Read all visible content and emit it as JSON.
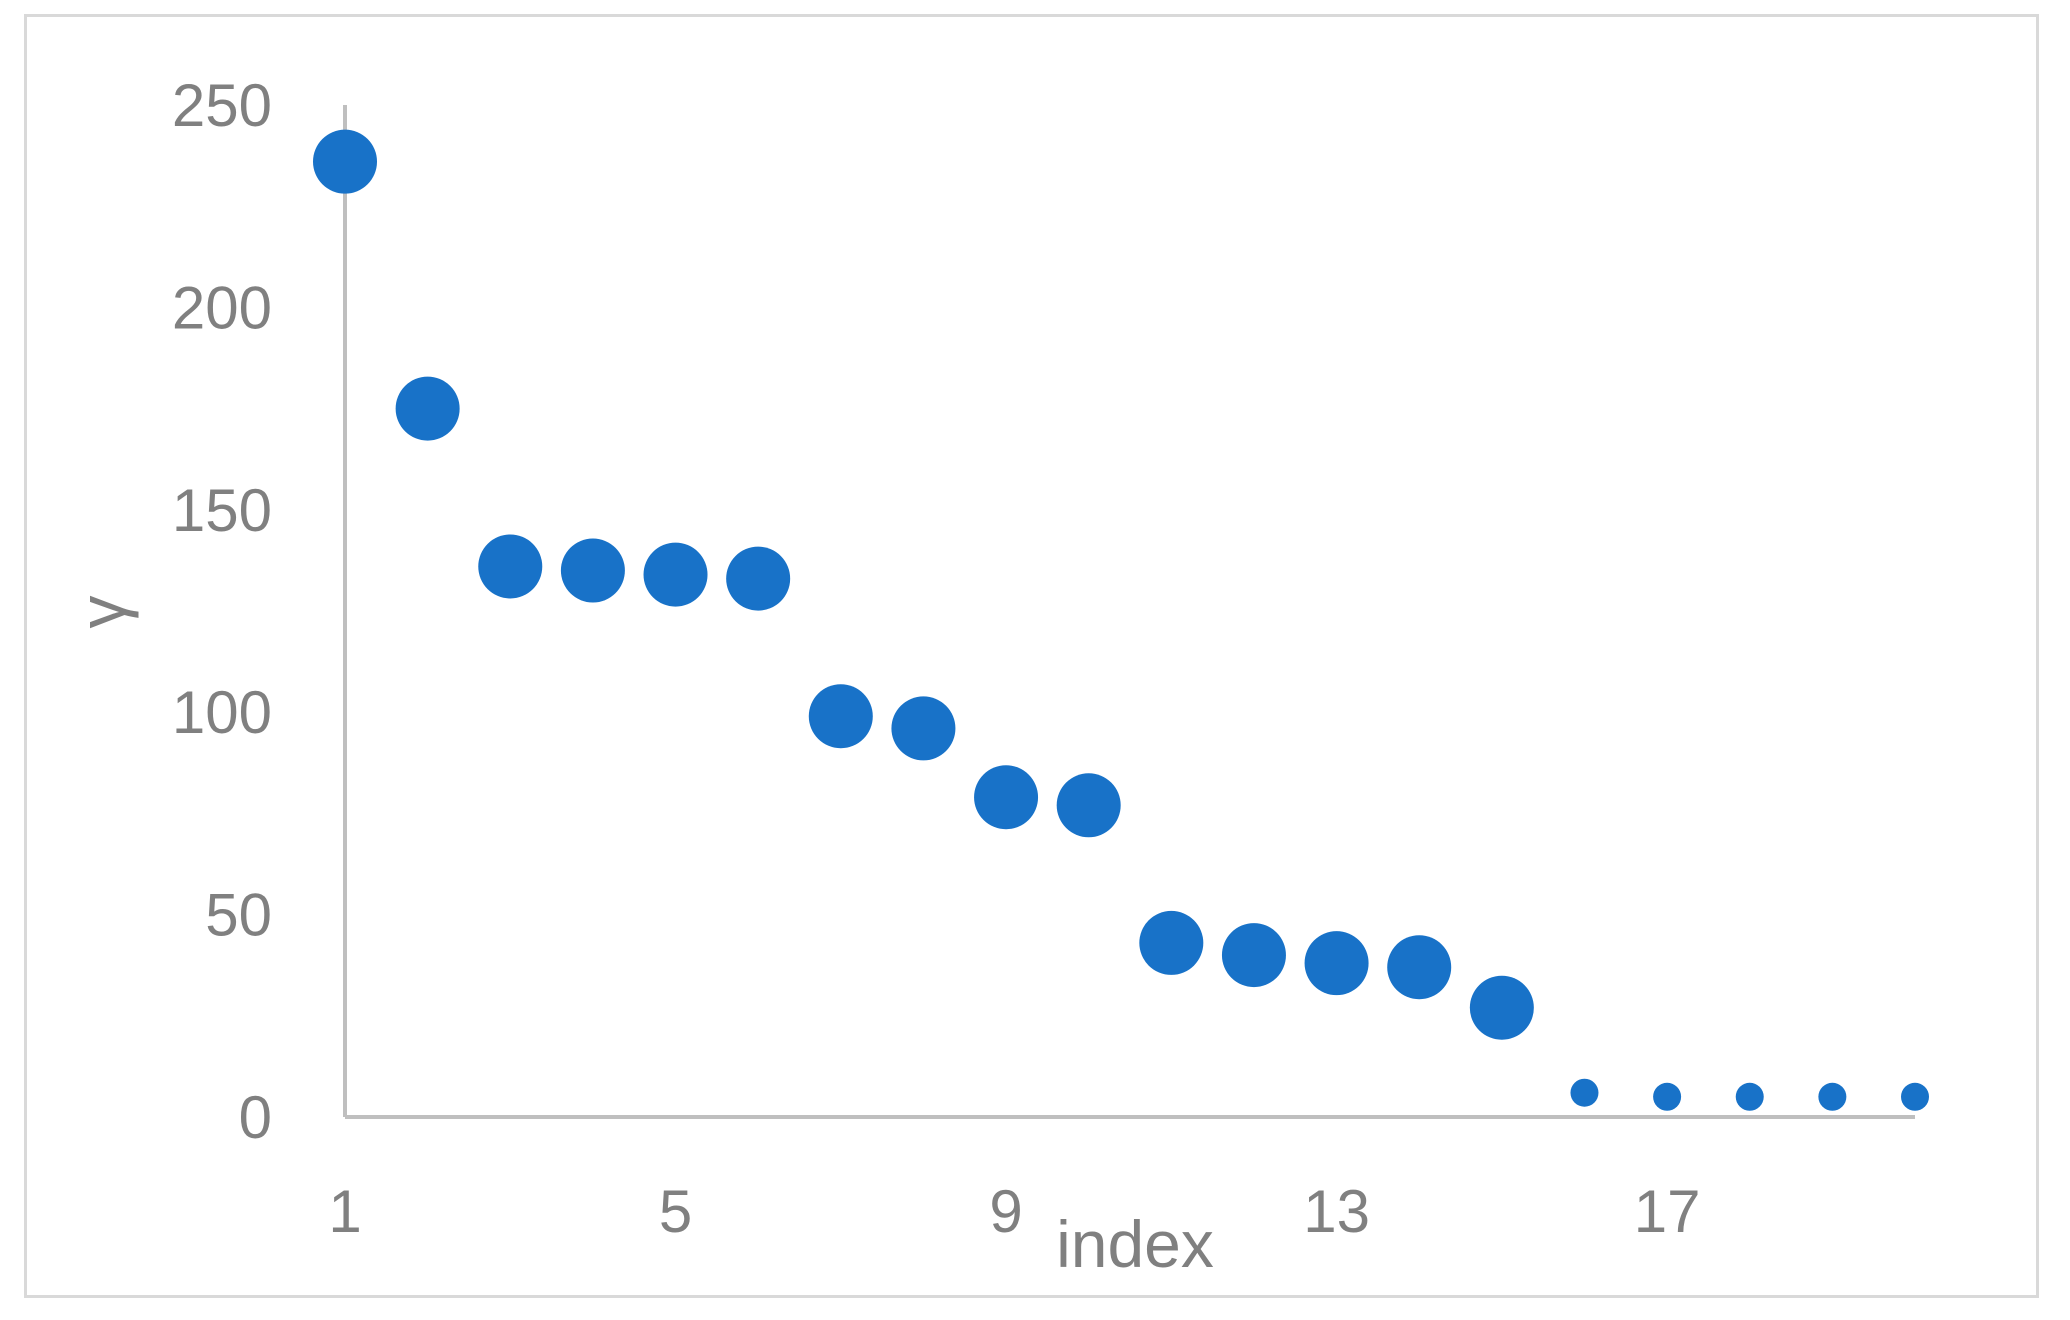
{
  "chart_data": {
    "type": "scatter",
    "title": "",
    "xlabel": "index",
    "ylabel": "γ",
    "x_ticks": [
      "1",
      "5",
      "9",
      "13",
      "17"
    ],
    "y_ticks": [
      "0",
      "50",
      "100",
      "150",
      "200",
      "250"
    ],
    "xlim": [
      1,
      20
    ],
    "ylim": [
      0,
      250
    ],
    "grid": false,
    "legend": "none",
    "marker_color": "#1872c8",
    "series": [
      {
        "x": [
          1,
          2,
          3,
          4,
          5,
          6,
          7,
          8,
          9,
          10,
          11,
          12,
          13,
          14,
          15,
          16,
          17,
          18,
          19,
          20
        ],
        "values": [
          236,
          175,
          136,
          135,
          134,
          133,
          99,
          96,
          79,
          77,
          43,
          40,
          38,
          37,
          27,
          6,
          5,
          5,
          5,
          5
        ]
      }
    ]
  }
}
